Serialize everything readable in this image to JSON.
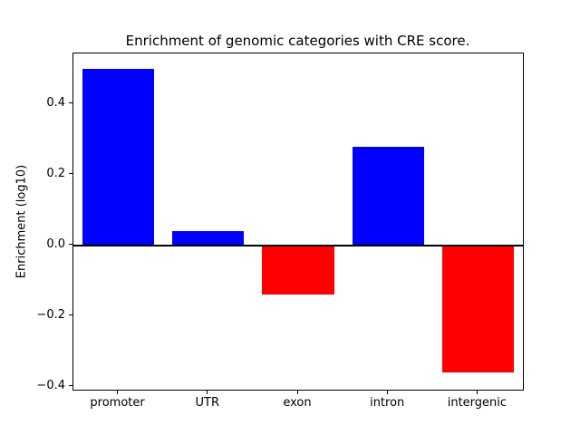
{
  "chart_data": {
    "type": "bar",
    "title": "Enrichment of genomic categories with CRE score.",
    "ylabel": "Enrichment (log10)",
    "xlabel": "",
    "categories": [
      "promoter",
      "UTR",
      "exon",
      "intron",
      "intergenic"
    ],
    "values": [
      0.5,
      0.04,
      -0.14,
      0.28,
      -0.36
    ],
    "yticks": [
      -0.4,
      -0.2,
      0.0,
      0.2,
      0.4
    ],
    "ylim": [
      -0.408,
      0.543
    ],
    "bar_width_fraction": 0.8,
    "positive_color": "#0000ff",
    "negative_color": "#ff0000",
    "zero_line_color": "#000000",
    "grid": false,
    "legend": "none",
    "background_color": "#ffffff"
  }
}
